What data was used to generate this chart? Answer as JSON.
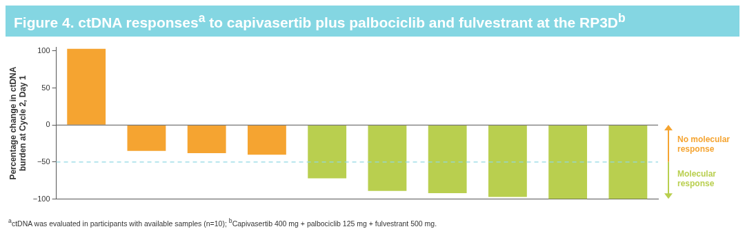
{
  "chart_data": {
    "type": "bar",
    "title": "Figure 4. ctDNA responses$^{a}$ to capivasertib plus palbociclib and fulvestrant at the RP3D$^{b}$",
    "ylabel": "Percentage change in ctDNA burden at Cycle 2, Day 1",
    "categories": [
      null,
      null,
      null,
      null,
      null,
      null,
      null,
      null,
      null,
      null
    ],
    "values": [
      103,
      -35,
      -38,
      -40,
      -72,
      -89,
      -92,
      -97,
      -100,
      -100
    ],
    "colors": [
      "#f5a431",
      "#f5a431",
      "#f5a431",
      "#f5a431",
      "#b9cf4f",
      "#b9cf4f",
      "#b9cf4f",
      "#b9cf4f",
      "#b9cf4f",
      "#b9cf4f"
    ],
    "ylim": [
      -100,
      105
    ],
    "yticks": [
      -100,
      -50,
      0,
      50,
      100
    ],
    "grid": false,
    "legend": false,
    "ref_lines": [
      {
        "axis": "y",
        "value": -50,
        "label": null,
        "color": "#8fd8e3",
        "line_style": "dashed"
      }
    ],
    "annotations": [
      "$^{a}$ctDNA was evaluated in participants with available samples (n=10); $^{b}$Capivasertib 400 mg + palbociclib 125 mg + fulvestrant 500 mg.",
      "No molecular response",
      "Molecular response"
    ]
  }
}
